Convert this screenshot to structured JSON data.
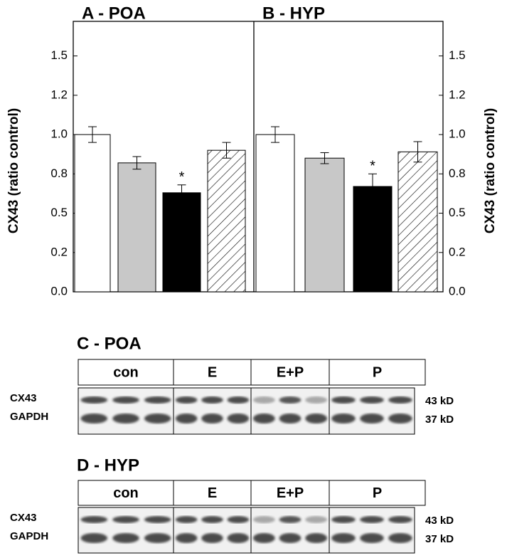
{
  "chart_data": [
    {
      "type": "bar",
      "title": "A - POA",
      "ylabel": "CX43 (ratio control)",
      "y_axis_side": "left",
      "categories": [
        null,
        null,
        null,
        null
      ],
      "values": [
        1.0,
        0.82,
        0.63,
        0.9
      ],
      "errors": [
        0.05,
        0.04,
        0.05,
        0.05
      ],
      "annotation_labels": [
        null,
        null,
        "*",
        null
      ],
      "colors": [
        "#ffffff",
        "#c8c8c8",
        "#000000",
        "#ffffff"
      ],
      "hatch": [
        false,
        false,
        false,
        true
      ],
      "ylim": [
        0,
        1.72
      ],
      "yticks": [
        {
          "value": 0,
          "label": "0.0"
        },
        {
          "value": 0.25,
          "label": "0.2"
        },
        0.5,
        {
          "value": 0.75,
          "label": "0.8"
        },
        {
          "value": 1.0,
          "label": "1.0"
        },
        {
          "value": 1.25,
          "label": "1.2"
        },
        1.5
      ]
    },
    {
      "type": "bar",
      "title": "B - HYP",
      "ylabel": "CX43 (ratio control)",
      "y_axis_side": "right",
      "categories": [
        null,
        null,
        null,
        null
      ],
      "values": [
        1.0,
        0.85,
        0.67,
        0.89
      ],
      "errors": [
        0.05,
        0.035,
        0.08,
        0.065
      ],
      "annotation_labels": [
        null,
        null,
        "*",
        null
      ],
      "colors": [
        "#ffffff",
        "#c8c8c8",
        "#000000",
        "#ffffff"
      ],
      "hatch": [
        false,
        false,
        false,
        true
      ],
      "ylim": [
        0,
        1.72
      ],
      "yticks": [
        {
          "value": 0,
          "label": "0.0"
        },
        {
          "value": 0.25,
          "label": "0.2"
        },
        0.5,
        {
          "value": 0.75,
          "label": "0.8"
        },
        {
          "value": 1.0,
          "label": "1.0"
        },
        {
          "value": 1.25,
          "label": "1.2"
        },
        1.5
      ]
    }
  ],
  "blots": [
    {
      "title": "C - POA",
      "groups": [
        "con",
        "E",
        "E+P",
        "P"
      ],
      "rows": [
        "CX43",
        "GAPDH"
      ],
      "sizes": [
        "43 kD",
        "37 kD"
      ]
    },
    {
      "title": "D - HYP",
      "groups": [
        "con",
        "E",
        "E+P",
        "P"
      ],
      "rows": [
        "CX43",
        "GAPDH"
      ],
      "sizes": [
        "43 kD",
        "37 kD"
      ]
    }
  ]
}
